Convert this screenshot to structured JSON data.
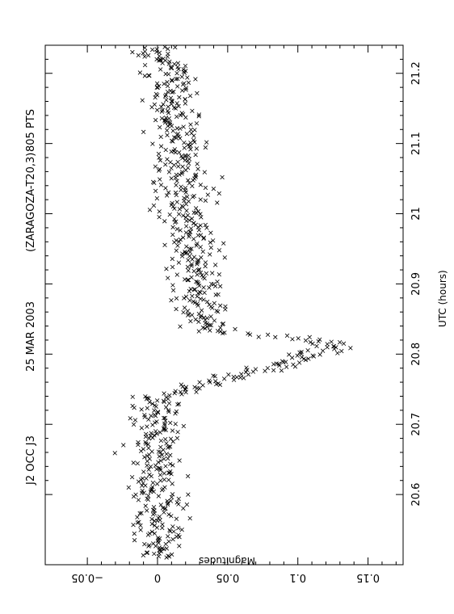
{
  "header": {
    "event": "J2 OCC J3",
    "date": "25 MAR 2003",
    "observer": "(ZARAGOZA-T20,3)",
    "points": "805 PTS"
  },
  "chart_data": {
    "type": "scatter",
    "marker": "x",
    "orientation": "rotated-90",
    "x_axis": {
      "label": "UTC (hours)",
      "range": [
        20.5,
        21.24
      ],
      "ticks": [
        "20.6",
        "20.7",
        "20.8",
        "20.9",
        "21",
        "21.1",
        "21.2"
      ]
    },
    "y_axis": {
      "label": "Magnitudes",
      "range": [
        -0.08,
        0.175
      ],
      "ticks": [
        "-0.05",
        "0",
        "0.05",
        "0.1",
        "0.15"
      ]
    },
    "n_points": 805,
    "profile": [
      {
        "x": 20.51,
        "y": 0.0
      },
      {
        "x": 20.55,
        "y": 0.0
      },
      {
        "x": 20.6,
        "y": 0.0
      },
      {
        "x": 20.65,
        "y": 0.0
      },
      {
        "x": 20.7,
        "y": 0.0
      },
      {
        "x": 20.74,
        "y": 0.0
      },
      {
        "x": 20.76,
        "y": 0.04
      },
      {
        "x": 20.78,
        "y": 0.08
      },
      {
        "x": 20.8,
        "y": 0.11
      },
      {
        "x": 20.81,
        "y": 0.125
      },
      {
        "x": 20.82,
        "y": 0.11
      },
      {
        "x": 20.83,
        "y": 0.05
      },
      {
        "x": 20.84,
        "y": 0.03
      },
      {
        "x": 20.86,
        "y": 0.03
      },
      {
        "x": 20.9,
        "y": 0.03
      },
      {
        "x": 20.95,
        "y": 0.025
      },
      {
        "x": 21.0,
        "y": 0.02
      },
      {
        "x": 21.05,
        "y": 0.02
      },
      {
        "x": 21.1,
        "y": 0.015
      },
      {
        "x": 21.15,
        "y": 0.01
      },
      {
        "x": 21.2,
        "y": 0.01
      },
      {
        "x": 21.24,
        "y": 0.0
      }
    ],
    "scatter_sigma": 0.02
  }
}
